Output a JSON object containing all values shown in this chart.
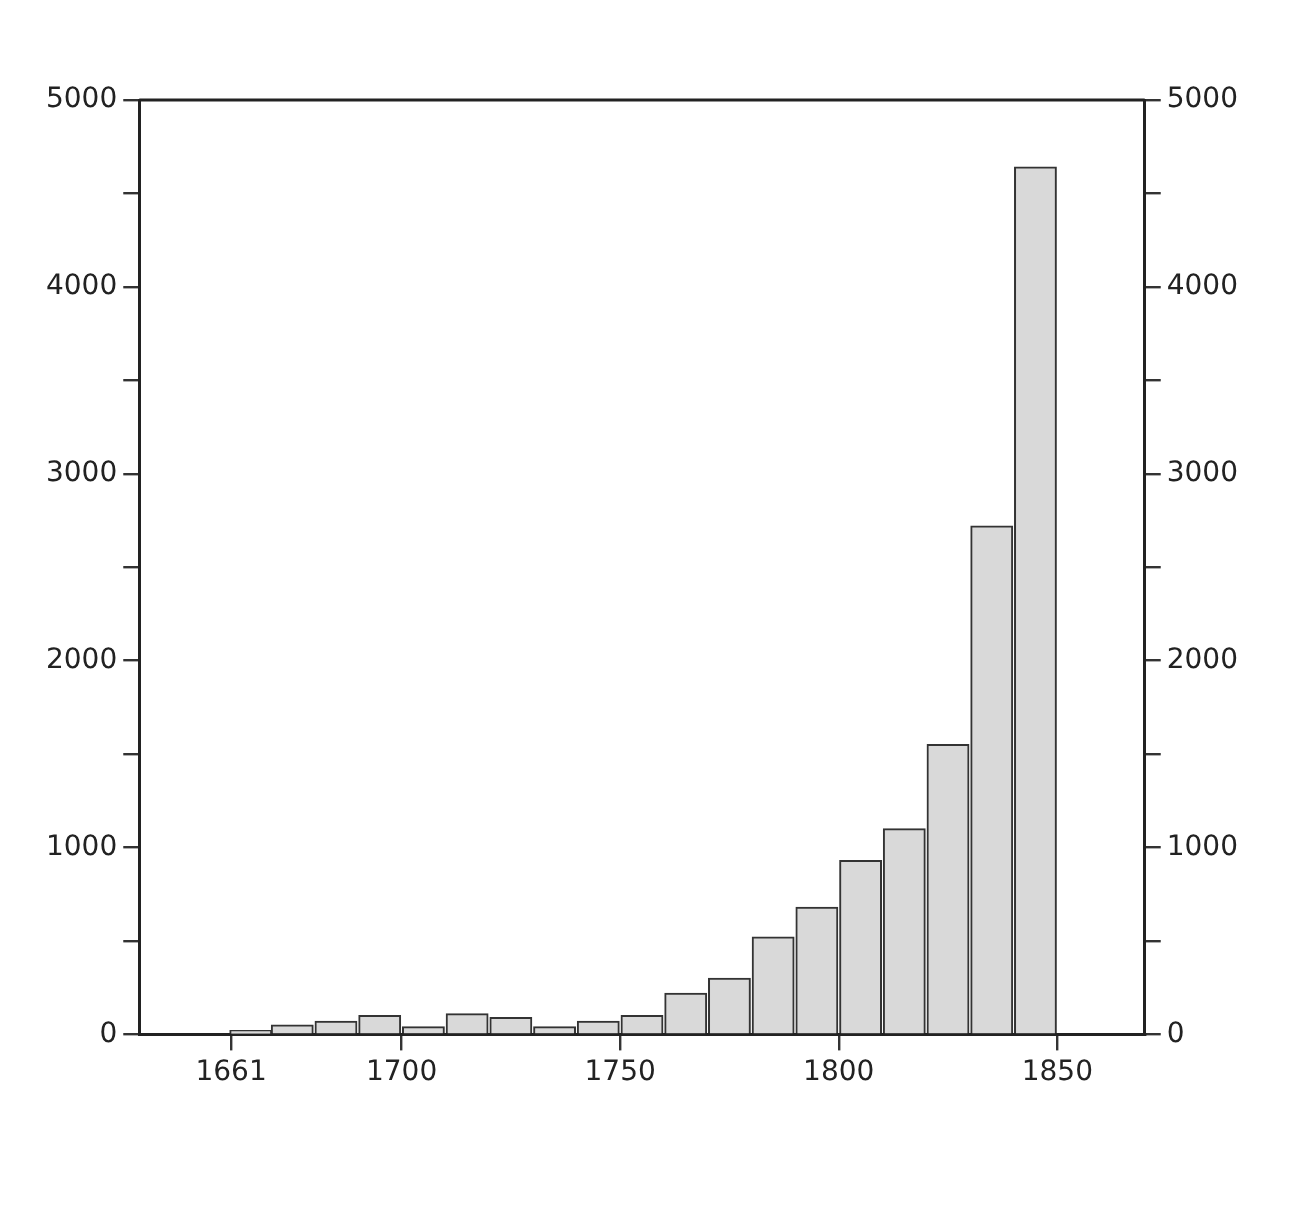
{
  "chart_data": {
    "type": "histogram",
    "bins": [
      1661,
      1670,
      1680,
      1690,
      1700,
      1710,
      1720,
      1730,
      1740,
      1750,
      1760,
      1770,
      1780,
      1790,
      1800,
      1810,
      1820,
      1830,
      1840,
      1850
    ],
    "values": [
      20,
      50,
      70,
      100,
      40,
      110,
      90,
      40,
      70,
      100,
      220,
      300,
      520,
      680,
      930,
      1100,
      1550,
      2720,
      4640
    ],
    "color": "#d9d9d9",
    "xlim": [
      1640,
      1870
    ],
    "xticks": [
      1661,
      1700,
      1750,
      1800,
      1850
    ],
    "ylim": [
      0,
      5000
    ],
    "yticks": [
      0,
      {
        "value": 500,
        "label": null
      },
      1000,
      {
        "value": 1500,
        "label": null
      },
      2000,
      {
        "value": 2500,
        "label": null
      },
      3000,
      {
        "value": 3500,
        "label": null
      },
      4000,
      {
        "value": 4500,
        "label": null
      },
      5000
    ],
    "y2lim": [
      0,
      5000
    ],
    "y2ticks": [
      0,
      {
        "value": 500,
        "label": null
      },
      1000,
      {
        "value": 1500,
        "label": null
      },
      2000,
      {
        "value": 2500,
        "label": null
      },
      3000,
      {
        "value": 3500,
        "label": null
      },
      4000,
      {
        "value": 4500,
        "label": null
      },
      5000
    ],
    "grid": false,
    "legend": false
  }
}
